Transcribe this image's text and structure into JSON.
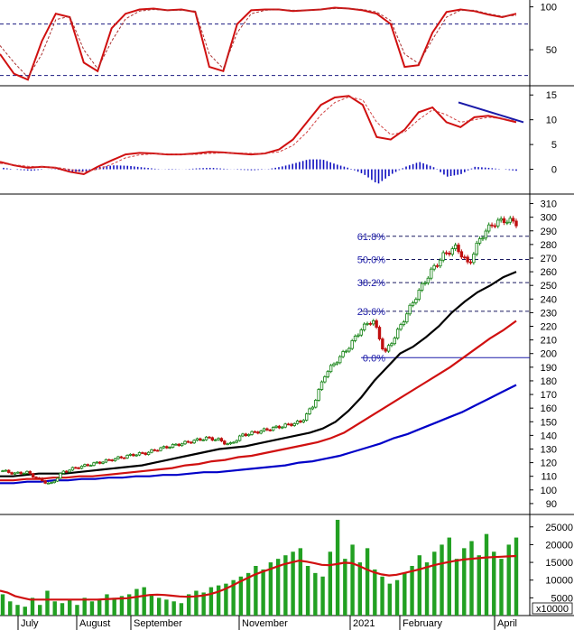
{
  "chart_data": {
    "type": "line",
    "panels": {
      "stochastic": {
        "y_ticks": [
          100,
          50
        ],
        "reference_lines": [
          80,
          20
        ],
        "series": [
          {
            "values": [
              45,
              22,
              15,
              60,
              92,
              88,
              35,
              25,
              75,
              92,
              97,
              98,
              96,
              97,
              94,
              30,
              25,
              80,
              96,
              97,
              97,
              95,
              96,
              97,
              99,
              98,
              96,
              92,
              80,
              30,
              32,
              70,
              94,
              97,
              95,
              91,
              88,
              92
            ]
          },
          {
            "values": [
              55,
              35,
              18,
              45,
              85,
              89,
              50,
              28,
              60,
              86,
              95,
              97,
              96,
              96,
              95,
              45,
              28,
              70,
              92,
              96,
              97,
              96,
              96,
              97,
              98,
              98,
              97,
              94,
              84,
              45,
              34,
              62,
              88,
              96,
              96,
              92,
              89,
              90
            ]
          }
        ]
      },
      "macd": {
        "y_ticks": [
          15,
          10,
          5,
          0
        ],
        "series": [
          {
            "values": [
              1.5,
              0.8,
              0.3,
              0.5,
              0.3,
              -0.5,
              -1.0,
              0.5,
              1.8,
              3.0,
              3.3,
              3.2,
              3.0,
              3.0,
              3.2,
              3.5,
              3.4,
              3.2,
              3.0,
              3.2,
              4.0,
              6.0,
              9.5,
              13,
              14.5,
              14.8,
              13,
              6.5,
              6.0,
              8.0,
              11.5,
              12.5,
              9.5,
              8.5,
              10.5,
              10.8,
              10.2,
              9.5
            ]
          },
          {
            "values": [
              1.2,
              0.9,
              0.6,
              0.5,
              0.4,
              0.0,
              -0.5,
              0.0,
              1.0,
              2.3,
              2.9,
              3.1,
              3.1,
              3.0,
              3.0,
              3.2,
              3.3,
              3.3,
              3.2,
              3.2,
              3.5,
              4.8,
              7.5,
              11,
              13.5,
              14.6,
              14,
              9.5,
              7.0,
              7.5,
              10,
              12,
              11,
              9.5,
              10,
              10.5,
              10.2,
              9.8
            ]
          }
        ],
        "histogram": [
          0.3,
          -0.1,
          -0.3,
          0.0,
          -0.1,
          -0.5,
          -0.5,
          0.5,
          0.8,
          0.7,
          0.4,
          0.1,
          -0.1,
          0.0,
          0.2,
          0.3,
          0.1,
          -0.1,
          -0.2,
          0.0,
          0.5,
          1.2,
          2.0,
          2.0,
          1.0,
          0.2,
          -1.0,
          -3.0,
          -1.0,
          0.5,
          1.5,
          0.5,
          -1.5,
          -1.0,
          0.5,
          0.3,
          0.0,
          -0.3
        ]
      },
      "price": {
        "y_ticks": [
          310,
          300,
          290,
          280,
          270,
          260,
          250,
          240,
          230,
          220,
          210,
          200,
          190,
          180,
          170,
          160,
          150,
          140,
          130,
          120,
          110,
          100,
          90
        ],
        "close": [
          114,
          112,
          113,
          108,
          104,
          113,
          116,
          118,
          120,
          122,
          124,
          126,
          127,
          130,
          132,
          134,
          136,
          138,
          137,
          133,
          140,
          142,
          144,
          146,
          148,
          150,
          162,
          185,
          195,
          205,
          218,
          225,
          200,
          215,
          232,
          248,
          262,
          273,
          278,
          265,
          285,
          295,
          298,
          296
        ],
        "moving_averages": [
          {
            "color": "#000000",
            "values": [
              110,
              110,
              111,
              112,
              112,
              112,
              113,
              114,
              115,
              116,
              117,
              118,
              120,
              122,
              124,
              126,
              128,
              130,
              131,
              132,
              134,
              136,
              138,
              140,
              142,
              145,
              150,
              158,
              168,
              180,
              190,
              200,
              205,
              212,
              220,
              230,
              238,
              245,
              250,
              256,
              260
            ]
          },
          {
            "color": "#d01010",
            "values": [
              107,
              107,
              108,
              108,
              109,
              109,
              110,
              110,
              111,
              112,
              113,
              114,
              115,
              116,
              118,
              119,
              121,
              122,
              124,
              125,
              127,
              129,
              131,
              133,
              135,
              138,
              142,
              148,
              154,
              160,
              166,
              172,
              178,
              184,
              190,
              197,
              204,
              211,
              217,
              224
            ]
          },
          {
            "color": "#0000c8",
            "values": [
              105,
              105,
              106,
              106,
              107,
              107,
              108,
              108,
              109,
              109,
              110,
              110,
              111,
              111,
              112,
              113,
              113,
              114,
              115,
              116,
              117,
              118,
              120,
              121,
              123,
              125,
              128,
              131,
              134,
              138,
              141,
              145,
              149,
              153,
              157,
              162,
              167,
              172,
              177
            ]
          }
        ],
        "fibonacci": [
          {
            "label": "61.8%",
            "value": 286
          },
          {
            "label": "50.0%",
            "value": 269
          },
          {
            "label": "38.2%",
            "value": 252
          },
          {
            "label": "23.6%",
            "value": 231
          },
          {
            "label": "0.0%",
            "value": 197
          }
        ],
        "trendline": {
          "start_value": 13.5,
          "end_value": 9.5
        }
      },
      "volume": {
        "y_ticks": [
          "25000",
          "20000",
          "15000",
          "10000",
          "5000"
        ],
        "unit_label": "x10000",
        "bars": [
          6000,
          4000,
          3000,
          2500,
          5000,
          3000,
          7000,
          4000,
          3500,
          4500,
          3000,
          5000,
          4000,
          4500,
          6000,
          5000,
          5500,
          6000,
          7500,
          8000,
          6000,
          5000,
          4500,
          4000,
          3500,
          6000,
          7000,
          6500,
          8000,
          8500,
          9000,
          10000,
          11000,
          12000,
          14000,
          13000,
          15000,
          16000,
          17000,
          18000,
          19000,
          14000,
          12000,
          11000,
          18000,
          27000,
          16000,
          20000,
          15000,
          19000,
          13000,
          11000,
          9000,
          10000,
          12000,
          14000,
          17000,
          15000,
          18000,
          20000,
          22000,
          16000,
          19000,
          21000,
          17000,
          23000,
          18000,
          16000,
          20000,
          22000
        ],
        "average": [
          7000,
          6500,
          5500,
          5000,
          4500,
          4500,
          4500,
          4500,
          4500,
          4500,
          4500,
          4500,
          4500,
          4500,
          4600,
          4700,
          4800,
          4900,
          5200,
          5500,
          5800,
          5900,
          5800,
          5600,
          5400,
          5300,
          5400,
          5600,
          6000,
          6600,
          7400,
          8400,
          9500,
          10500,
          11500,
          12300,
          13000,
          13800,
          14500,
          15000,
          15500,
          15200,
          14800,
          14300,
          14200,
          14500,
          14900,
          14800,
          14000,
          13000,
          12200,
          11600,
          11300,
          11500,
          12000,
          12500,
          13000,
          13600,
          14200,
          14700,
          15100,
          15500,
          15800,
          16000,
          16200,
          16400,
          16500,
          16600,
          16700,
          16800
        ]
      }
    },
    "x_labels": [
      "July",
      "August",
      "September",
      "November",
      "2021",
      "February",
      "April"
    ]
  }
}
